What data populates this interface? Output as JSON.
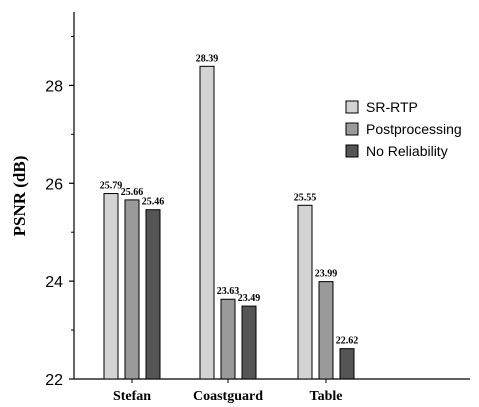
{
  "chart_data": {
    "type": "bar",
    "categories": [
      "Stefan",
      "Coastguard",
      "Table"
    ],
    "series": [
      {
        "name": "SR-RTP",
        "values": [
          25.79,
          28.39,
          25.55
        ],
        "color": "#d3d3d3"
      },
      {
        "name": "Postprocessing",
        "values": [
          25.66,
          23.63,
          23.99
        ],
        "color": "#9a9a9a"
      },
      {
        "name": "No Reliability",
        "values": [
          25.46,
          23.49,
          22.62
        ],
        "color": "#555555"
      }
    ],
    "value_labels": [
      [
        "25.79",
        "25.66",
        "25.46"
      ],
      [
        "28.39",
        "23.63",
        "23.49"
      ],
      [
        "25.55",
        "23.99",
        "22.62"
      ]
    ],
    "ylabel": "PSNR (dB)",
    "ylim": [
      22,
      29.5
    ],
    "yticks": [
      22,
      24,
      26,
      28
    ],
    "ytick_labels": [
      "22",
      "24",
      "26",
      "28"
    ],
    "grid": false,
    "legend_position": "right"
  }
}
